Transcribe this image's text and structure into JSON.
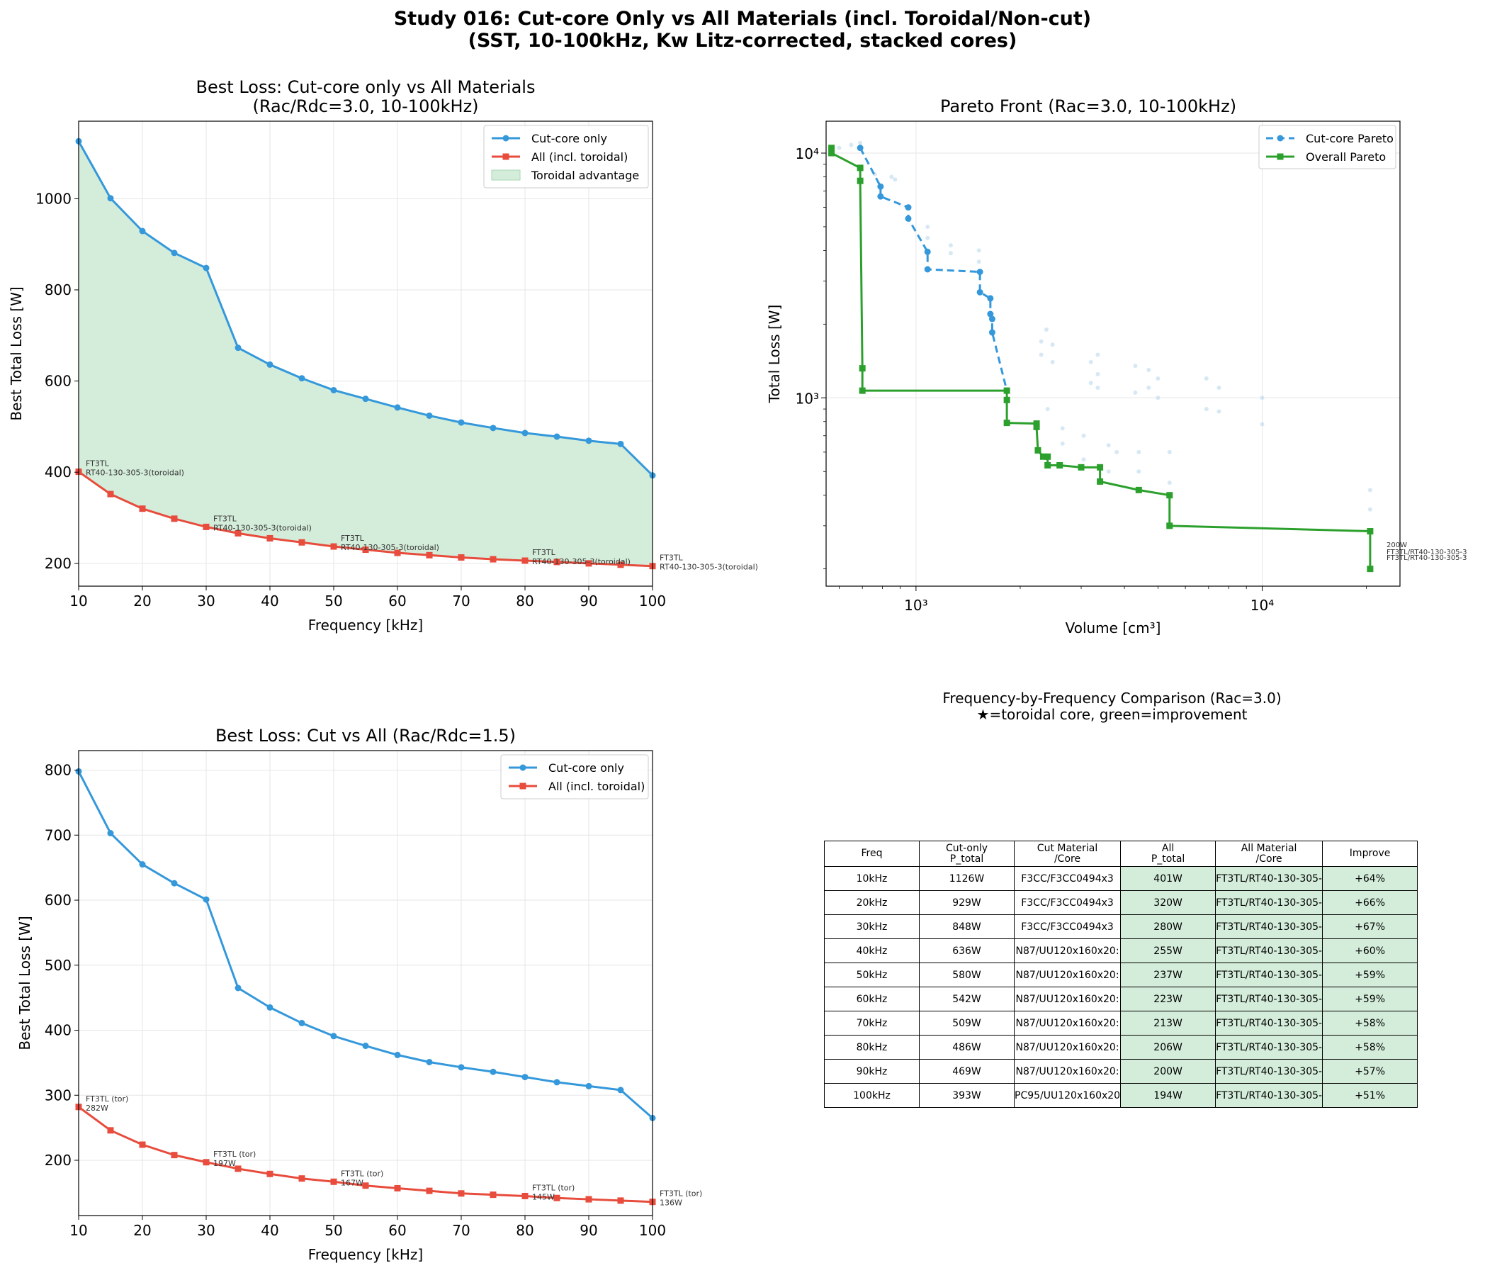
{
  "page": {
    "title_line1": "Study 016: Cut-core Only vs All Materials (incl. Toroidal/Non-cut)",
    "title_line2": "(SST, 10-100kHz, Kw Litz-corrected, stacked cores)"
  },
  "colors": {
    "cut": "#3498db",
    "all": "#e74c3c",
    "fill": "#d4edda",
    "overall": "#2ca02c",
    "scatter": "#bcd8ee"
  },
  "chart_data": [
    {
      "type": "line",
      "id": "rac3",
      "title": "Best Loss: Cut-core only vs All Materials",
      "subtitle": "(Rac/Rdc=3.0, 10-100kHz)",
      "xlabel": "Frequency [kHz]",
      "ylabel": "Best Total Loss [W]",
      "xlim": [
        10,
        100
      ],
      "ylim": [
        150,
        1170
      ],
      "xticks": [
        10,
        20,
        30,
        40,
        50,
        60,
        70,
        80,
        90,
        100
      ],
      "yticks": [
        200,
        400,
        600,
        800,
        1000
      ],
      "x": [
        10,
        15,
        20,
        25,
        30,
        35,
        40,
        45,
        50,
        55,
        60,
        65,
        70,
        75,
        80,
        85,
        90,
        95,
        100
      ],
      "series": [
        {
          "name": "Cut-core only",
          "values": [
            1126,
            1001,
            929,
            881,
            848,
            673,
            636,
            606,
            580,
            561,
            542,
            524,
            509,
            497,
            486,
            478,
            469,
            462,
            393
          ]
        },
        {
          "name": "All (incl. toroidal)",
          "values": [
            401,
            352,
            320,
            298,
            280,
            266,
            255,
            246,
            237,
            230,
            223,
            218,
            213,
            209,
            206,
            203,
            200,
            197,
            194
          ]
        }
      ],
      "fill_label": "Toroidal advantage",
      "annotations": [
        {
          "x": 10,
          "y": 401,
          "line1": "FT3TL",
          "line2": "RT40-130-305-3(toroidal)"
        },
        {
          "x": 30,
          "y": 280,
          "line1": "FT3TL",
          "line2": "RT40-130-305-3(toroidal)"
        },
        {
          "x": 50,
          "y": 237,
          "line1": "FT3TL",
          "line2": "RT40-130-305-3(toroidal)"
        },
        {
          "x": 80,
          "y": 206,
          "line1": "FT3TL",
          "line2": "RT40-130-305-3(toroidal)"
        },
        {
          "x": 100,
          "y": 194,
          "line1": "FT3TL",
          "line2": "RT40-130-305-3(toroidal)"
        }
      ]
    },
    {
      "type": "scatter",
      "id": "pareto",
      "title": "Pareto Front (Rac=3.0, 10-100kHz)",
      "xlabel": "Volume [cm³]",
      "ylabel": "Total Loss [W]",
      "xscale": "log",
      "yscale": "log",
      "xlim": [
        550,
        25000
      ],
      "ylim": [
        170,
        13500
      ],
      "xtick_labels": [
        "10³",
        "10⁴"
      ],
      "ytick_labels": [
        "10³",
        "10⁴"
      ],
      "series": [
        {
          "name": "Cut-core Pareto",
          "x": [
            690,
            790,
            790,
            950,
            950,
            1080,
            1080,
            1530,
            1530,
            1640,
            1640,
            1660,
            1660,
            1830
          ],
          "y": [
            10500,
            7300,
            6650,
            6000,
            5400,
            3950,
            3350,
            3270,
            2700,
            2550,
            2200,
            2100,
            1850,
            1070
          ]
        },
        {
          "name": "Overall Pareto",
          "x": [
            570,
            570,
            690,
            690,
            700,
            700,
            1830,
            1830,
            1830,
            2230,
            2230,
            2250,
            2330,
            2400,
            2400,
            2600,
            3000,
            3400,
            3400,
            4400,
            5400,
            5400,
            20500,
            20500
          ],
          "y": [
            10500,
            10000,
            8700,
            7700,
            1320,
            1070,
            1070,
            980,
            790,
            785,
            760,
            610,
            575,
            575,
            530,
            530,
            520,
            520,
            455,
            420,
            400,
            300,
            285,
            200
          ]
        }
      ],
      "scatter_points": [
        [
          600,
          10500
        ],
        [
          650,
          10800
        ],
        [
          690,
          11000
        ],
        [
          760,
          8200
        ],
        [
          850,
          8000
        ],
        [
          870,
          7800
        ],
        [
          1080,
          5000
        ],
        [
          1080,
          4500
        ],
        [
          1260,
          4200
        ],
        [
          1260,
          3900
        ],
        [
          1520,
          4000
        ],
        [
          1520,
          3600
        ],
        [
          2300,
          1700
        ],
        [
          2300,
          1500
        ],
        [
          2380,
          1900
        ],
        [
          2480,
          1650
        ],
        [
          2480,
          1400
        ],
        [
          3200,
          1400
        ],
        [
          3200,
          1150
        ],
        [
          3350,
          1500
        ],
        [
          3350,
          1250
        ],
        [
          3350,
          1100
        ],
        [
          4300,
          1350
        ],
        [
          4300,
          1050
        ],
        [
          4700,
          1300
        ],
        [
          4700,
          1100
        ],
        [
          5000,
          1200
        ],
        [
          5000,
          1000
        ],
        [
          6900,
          1200
        ],
        [
          6900,
          900
        ],
        [
          7500,
          1100
        ],
        [
          7500,
          880
        ],
        [
          10000,
          1000
        ],
        [
          10000,
          780
        ],
        [
          2400,
          900
        ],
        [
          2650,
          750
        ],
        [
          2650,
          650
        ],
        [
          3050,
          700
        ],
        [
          3050,
          560
        ],
        [
          3600,
          640
        ],
        [
          3600,
          500
        ],
        [
          3800,
          600
        ],
        [
          4400,
          600
        ],
        [
          4400,
          500
        ],
        [
          5400,
          600
        ],
        [
          5400,
          450
        ],
        [
          20500,
          420
        ],
        [
          20500,
          350
        ]
      ],
      "annotations": [
        "200W",
        "FT3TL/RT40-130-305-3"
      ]
    },
    {
      "type": "line",
      "id": "rac15",
      "title": "Best Loss: Cut vs All (Rac/Rdc=1.5)",
      "xlabel": "Frequency [kHz]",
      "ylabel": "Best Total Loss [W]",
      "xlim": [
        10,
        100
      ],
      "ylim": [
        115,
        830
      ],
      "xticks": [
        10,
        20,
        30,
        40,
        50,
        60,
        70,
        80,
        90,
        100
      ],
      "yticks": [
        200,
        300,
        400,
        500,
        600,
        700,
        800
      ],
      "x": [
        10,
        15,
        20,
        25,
        30,
        35,
        40,
        45,
        50,
        55,
        60,
        65,
        70,
        75,
        80,
        85,
        90,
        95,
        100
      ],
      "series": [
        {
          "name": "Cut-core only",
          "values": [
            798,
            703,
            655,
            626,
            601,
            465,
            435,
            411,
            391,
            376,
            362,
            351,
            343,
            336,
            328,
            320,
            314,
            308,
            265
          ]
        },
        {
          "name": "All (incl. toroidal)",
          "values": [
            282,
            246,
            224,
            208,
            197,
            187,
            179,
            172,
            167,
            161,
            157,
            153,
            149,
            147,
            145,
            142,
            140,
            138,
            136
          ]
        }
      ],
      "annotations": [
        {
          "x": 10,
          "y": 282,
          "line1": "FT3TL (tor)",
          "line2": "282W"
        },
        {
          "x": 30,
          "y": 197,
          "line1": "FT3TL (tor)",
          "line2": "197W"
        },
        {
          "x": 50,
          "y": 167,
          "line1": "FT3TL (tor)",
          "line2": "167W"
        },
        {
          "x": 80,
          "y": 145,
          "line1": "FT3TL (tor)",
          "line2": "145W"
        },
        {
          "x": 100,
          "y": 136,
          "line1": "FT3TL (tor)",
          "line2": "136W"
        }
      ]
    },
    {
      "type": "table",
      "id": "comparison",
      "title": "Frequency-by-Frequency Comparison (Rac=3.0)",
      "subtitle": "★=toroidal core, green=improvement",
      "headers": [
        "Freq",
        "Cut-only\nP_total",
        "Cut Material\n/Core",
        "All\nP_total",
        "All Material\n/Core",
        "Improve"
      ],
      "rows": [
        [
          "10kHz",
          "1126W",
          "F3CC/F3CC0494x3",
          "401W",
          "FT3TL/RT40-130-305-",
          "+64%"
        ],
        [
          "20kHz",
          "929W",
          "F3CC/F3CC0494x3",
          "320W",
          "FT3TL/RT40-130-305-",
          "+66%"
        ],
        [
          "30kHz",
          "848W",
          "F3CC/F3CC0494x3",
          "280W",
          "FT3TL/RT40-130-305-",
          "+67%"
        ],
        [
          "40kHz",
          "636W",
          "N87/UU120x160x20:",
          "255W",
          "FT3TL/RT40-130-305-",
          "+60%"
        ],
        [
          "50kHz",
          "580W",
          "N87/UU120x160x20:",
          "237W",
          "FT3TL/RT40-130-305-",
          "+59%"
        ],
        [
          "60kHz",
          "542W",
          "N87/UU120x160x20:",
          "223W",
          "FT3TL/RT40-130-305-",
          "+59%"
        ],
        [
          "70kHz",
          "509W",
          "N87/UU120x160x20:",
          "213W",
          "FT3TL/RT40-130-305-",
          "+58%"
        ],
        [
          "80kHz",
          "486W",
          "N87/UU120x160x20:",
          "206W",
          "FT3TL/RT40-130-305-",
          "+58%"
        ],
        [
          "90kHz",
          "469W",
          "N87/UU120x160x20:",
          "200W",
          "FT3TL/RT40-130-305-",
          "+57%"
        ],
        [
          "100kHz",
          "393W",
          "PC95/UU120x160x20",
          "194W",
          "FT3TL/RT40-130-305-",
          "+51%"
        ]
      ]
    }
  ]
}
